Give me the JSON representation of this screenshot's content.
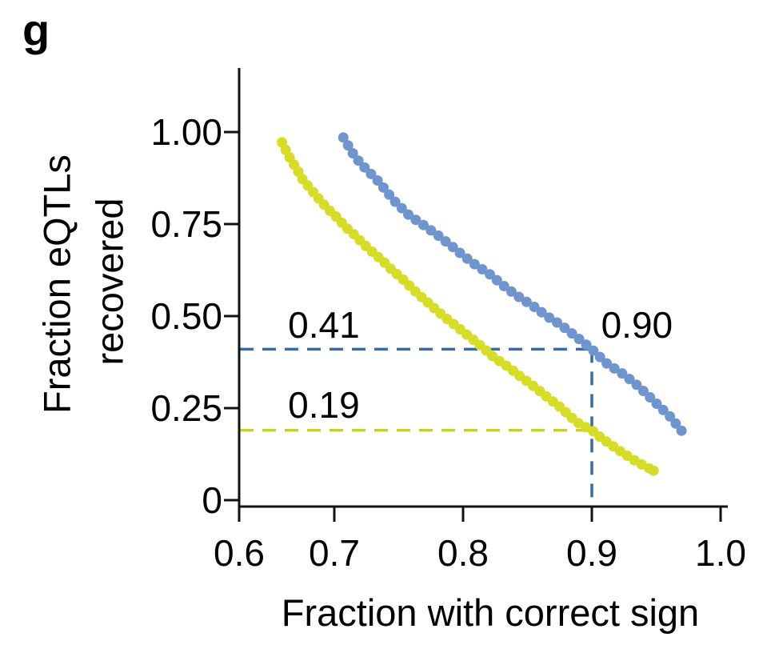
{
  "panel_label": "g",
  "chart_data": {
    "type": "scatter",
    "title": "",
    "xlabel": "Fraction with correct sign",
    "ylabel": "Fraction eQTLs recovered",
    "ylabel_lines": [
      "Fraction eQTLs",
      "recovered"
    ],
    "xlim": [
      0.6,
      1.0
    ],
    "ylim": [
      0,
      1.0
    ],
    "x_ticks": [
      0.6,
      0.7,
      0.8,
      0.9,
      1.0
    ],
    "x_tick_labels": [
      "0.6",
      "0.7",
      "0.8",
      "0.9",
      "1.0"
    ],
    "y_ticks": [
      0,
      0.25,
      0.5,
      0.75,
      1.0
    ],
    "y_tick_labels": [
      "0",
      "0.25",
      "0.50",
      "0.75",
      "1.00"
    ],
    "grid": false,
    "legend_position": "none",
    "series": [
      {
        "name": "blue-curve",
        "color": "#7094ce",
        "marker_radius": 6.5,
        "dot_spacing": 11.5,
        "points": [
          [
            0.707,
            0.985
          ],
          [
            0.716,
            0.933
          ],
          [
            0.725,
            0.898
          ],
          [
            0.734,
            0.867
          ],
          [
            0.746,
            0.815
          ],
          [
            0.758,
            0.774
          ],
          [
            0.771,
            0.743
          ],
          [
            0.783,
            0.713
          ],
          [
            0.796,
            0.676
          ],
          [
            0.808,
            0.643
          ],
          [
            0.821,
            0.613
          ],
          [
            0.833,
            0.578
          ],
          [
            0.845,
            0.548
          ],
          [
            0.855,
            0.526
          ],
          [
            0.865,
            0.5
          ],
          [
            0.876,
            0.476
          ],
          [
            0.889,
            0.441
          ],
          [
            0.9,
            0.41
          ],
          [
            0.912,
            0.37
          ],
          [
            0.925,
            0.341
          ],
          [
            0.937,
            0.307
          ],
          [
            0.95,
            0.263
          ],
          [
            0.961,
            0.226
          ],
          [
            0.97,
            0.187
          ]
        ]
      },
      {
        "name": "yellow-curve",
        "color": "#d7dc28",
        "marker_radius": 6.5,
        "dot_spacing": 10.5,
        "points": [
          [
            0.645,
            0.972
          ],
          [
            0.65,
            0.946
          ],
          [
            0.655,
            0.922
          ],
          [
            0.661,
            0.898
          ],
          [
            0.666,
            0.874
          ],
          [
            0.673,
            0.852
          ],
          [
            0.68,
            0.83
          ],
          [
            0.687,
            0.809
          ],
          [
            0.695,
            0.787
          ],
          [
            0.703,
            0.765
          ],
          [
            0.709,
            0.741
          ],
          [
            0.716,
            0.72
          ],
          [
            0.722,
            0.698
          ],
          [
            0.729,
            0.676
          ],
          [
            0.737,
            0.652
          ],
          [
            0.744,
            0.628
          ],
          [
            0.752,
            0.604
          ],
          [
            0.759,
            0.58
          ],
          [
            0.766,
            0.557
          ],
          [
            0.774,
            0.533
          ],
          [
            0.781,
            0.511
          ],
          [
            0.788,
            0.491
          ],
          [
            0.795,
            0.472
          ],
          [
            0.802,
            0.452
          ],
          [
            0.809,
            0.433
          ],
          [
            0.816,
            0.413
          ],
          [
            0.822,
            0.393
          ],
          [
            0.829,
            0.376
          ],
          [
            0.837,
            0.357
          ],
          [
            0.844,
            0.337
          ],
          [
            0.852,
            0.317
          ],
          [
            0.859,
            0.298
          ],
          [
            0.866,
            0.278
          ],
          [
            0.874,
            0.257
          ],
          [
            0.881,
            0.235
          ],
          [
            0.887,
            0.215
          ],
          [
            0.893,
            0.202
          ],
          [
            0.9,
            0.19
          ],
          [
            0.907,
            0.17
          ],
          [
            0.915,
            0.15
          ],
          [
            0.922,
            0.133
          ],
          [
            0.93,
            0.115
          ],
          [
            0.937,
            0.1
          ],
          [
            0.943,
            0.089
          ],
          [
            0.948,
            0.08
          ]
        ]
      }
    ],
    "reference_lines": [
      {
        "orientation": "horizontal",
        "value": 0.41,
        "from_x": 0.6,
        "to_x": 0.9,
        "color": "#3a6d9e"
      },
      {
        "orientation": "horizontal",
        "value": 0.19,
        "from_x": 0.6,
        "to_x": 0.893,
        "color": "#c9d122"
      },
      {
        "orientation": "vertical",
        "value": 0.9,
        "from_y": 0.0,
        "to_y": 0.41,
        "color": "#3a6d9e"
      }
    ],
    "annotations": [
      {
        "text": "0.41",
        "x": 0.689,
        "y": 0.476,
        "color": "#000000"
      },
      {
        "text": "0.19",
        "x": 0.689,
        "y": 0.259,
        "color": "#000000"
      },
      {
        "text": "0.90",
        "x": 0.935,
        "y": 0.476,
        "color": "#000000"
      }
    ]
  }
}
